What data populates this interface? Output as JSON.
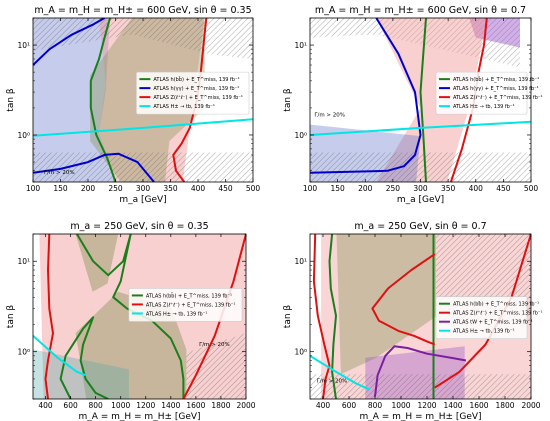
{
  "figure": {
    "panels": [
      {
        "title": "m_A = m_H = m_H± = 600 GeV, sin θ = 0.35",
        "xlabel": "m_a [GeV]",
        "ylabel": "tan β",
        "xticks": [
          "100",
          "150",
          "200",
          "250",
          "300",
          "350",
          "400",
          "450",
          "500"
        ],
        "yticks": [
          "10⁰",
          "10¹"
        ],
        "annotation": "Γ/m > 20%",
        "legend": [
          {
            "label": "ATLAS h(bb̄) + E_T^miss, 139 fb⁻¹",
            "color": "#1a7f1a"
          },
          {
            "label": "ATLAS h(γγ) + E_T^miss, 139 fb⁻¹",
            "color": "#0000cc"
          },
          {
            "label": "ATLAS Z(ℓ⁺ℓ⁻) + E_T^miss, 139 fb⁻¹",
            "color": "#e01010"
          },
          {
            "label": "ATLAS H± → tb, 139 fb⁻¹",
            "color": "#00e5e5"
          }
        ]
      },
      {
        "title": "m_A = m_H = m_H± = 600 GeV, sin θ = 0.7",
        "xlabel": "m_a [GeV]",
        "ylabel": "tan β",
        "xticks": [
          "100",
          "150",
          "200",
          "250",
          "300",
          "350",
          "400",
          "450",
          "500"
        ],
        "yticks": [
          "10⁰",
          "10¹"
        ],
        "annotation": "Γ/m > 20%",
        "legend": [
          {
            "label": "ATLAS h(bb̄) + E_T^miss, 139 fb⁻¹",
            "color": "#1a7f1a"
          },
          {
            "label": "ATLAS h(γγ) + E_T^miss, 139 fb⁻¹",
            "color": "#0000cc"
          },
          {
            "label": "ATLAS Z(ℓ⁺ℓ⁻) + E_T^miss, 139 fb⁻¹",
            "color": "#e01010"
          },
          {
            "label": "ATLAS H± → tb, 139 fb⁻¹",
            "color": "#00e5e5"
          }
        ]
      },
      {
        "title": "m_a = 250 GeV, sin θ = 0.35",
        "xlabel": "m_A = m_H = m_H± [GeV]",
        "ylabel": "tan β",
        "xticks": [
          "400",
          "600",
          "800",
          "1000",
          "1200",
          "1400",
          "1600",
          "1800",
          "2000"
        ],
        "yticks": [
          "10⁰",
          "10¹"
        ],
        "annotation": "Γ/m > 20%",
        "legend": [
          {
            "label": "ATLAS h(bb̄) + E_T^miss, 139 fb⁻¹",
            "color": "#1a7f1a"
          },
          {
            "label": "ATLAS Z(ℓ⁺ℓ⁻) + E_T^miss, 139 fb⁻¹",
            "color": "#e01010"
          },
          {
            "label": "ATLAS H± → tb, 139 fb⁻¹",
            "color": "#00e5e5"
          }
        ]
      },
      {
        "title": "m_a = 250 GeV, sin θ = 0.7",
        "xlabel": "m_A = m_H = m_H± [GeV]",
        "ylabel": "tan β",
        "xticks": [
          "400",
          "600",
          "800",
          "1000",
          "1200",
          "1400",
          "1600",
          "1800",
          "2000"
        ],
        "yticks": [
          "10⁰",
          "10¹"
        ],
        "annotation": "Γ/m > 20%",
        "legend": [
          {
            "label": "ATLAS h(bb̄) + E_T^miss, 139 fb⁻¹",
            "color": "#1a7f1a"
          },
          {
            "label": "ATLAS Z(ℓ⁺ℓ⁻) + E_T^miss, 139 fb⁻¹",
            "color": "#e01010"
          },
          {
            "label": "ATLAS tW + E_T^miss, 139 fb⁻¹",
            "color": "#7a1f9e"
          },
          {
            "label": "ATLAS H± → tb, 139 fb⁻¹",
            "color": "#00e5e5"
          }
        ]
      }
    ]
  },
  "chart_data": [
    {
      "type": "line",
      "title": "m_A = m_H = m_H± = 600 GeV, sin θ = 0.35",
      "xlabel": "m_a [GeV]",
      "ylabel": "tan β",
      "xlim": [
        100,
        500
      ],
      "ylim": [
        0.3,
        20
      ],
      "yscale": "log",
      "grid": false,
      "legend_position": "right",
      "series": [
        {
          "name": "ATLAS h(bb̄) + E_T^miss, 139 fb⁻¹",
          "color": "#1a7f1a",
          "points": [
            [
              240,
              20
            ],
            [
              230,
              12
            ],
            [
              220,
              7
            ],
            [
              205,
              4
            ],
            [
              205,
              2
            ],
            [
              215,
              1.0
            ],
            [
              235,
              0.55
            ],
            [
              250,
              0.3
            ]
          ]
        },
        {
          "name": "ATLAS h(γγ) + E_T^miss, 139 fb⁻¹",
          "color": "#0000cc",
          "points": [
            [
              100,
              6
            ],
            [
              130,
              9
            ],
            [
              170,
              13
            ],
            [
              210,
              17
            ],
            [
              230,
              20
            ]
          ]
        },
        {
          "name": "ATLAS h(γγ) + E_T^miss, 139 fb⁻¹ (lower)",
          "color": "#0000cc",
          "points": [
            [
              100,
              0.38
            ],
            [
              150,
              0.42
            ],
            [
              200,
              0.5
            ],
            [
              230,
              0.6
            ],
            [
              255,
              0.62
            ],
            [
              290,
              0.5
            ],
            [
              320,
              0.3
            ]
          ]
        },
        {
          "name": "ATLAS Z(ℓ⁺ℓ⁻) + E_T^miss, 139 fb⁻¹",
          "color": "#e01010",
          "points": [
            [
              415,
              20
            ],
            [
              410,
              10
            ],
            [
              405,
              5
            ],
            [
              398,
              2.5
            ],
            [
              385,
              1.2
            ],
            [
              370,
              0.8
            ],
            [
              355,
              0.6
            ],
            [
              360,
              0.4
            ],
            [
              375,
              0.3
            ]
          ]
        },
        {
          "name": "ATLAS H± → tb, 139 fb⁻¹",
          "color": "#00e5e5",
          "points": [
            [
              100,
              0.98
            ],
            [
              300,
              1.2
            ],
            [
              500,
              1.5
            ]
          ]
        }
      ]
    },
    {
      "type": "line",
      "title": "m_A = m_H = m_H± = 600 GeV, sin θ = 0.7",
      "xlabel": "m_a [GeV]",
      "ylabel": "tan β",
      "xlim": [
        100,
        500
      ],
      "ylim": [
        0.3,
        20
      ],
      "yscale": "log",
      "grid": false,
      "legend_position": "right",
      "series": [
        {
          "name": "ATLAS h(bb̄) + E_T^miss, 139 fb⁻¹",
          "color": "#1a7f1a",
          "points": [
            [
              310,
              20
            ],
            [
              305,
              8
            ],
            [
              300,
              3
            ],
            [
              305,
              1.0
            ],
            [
              310,
              0.3
            ]
          ]
        },
        {
          "name": "ATLAS h(γγ) + E_T^miss, 139 fb⁻¹",
          "color": "#0000cc",
          "points": [
            [
              220,
              20
            ],
            [
              260,
              8
            ],
            [
              290,
              3
            ],
            [
              300,
              1.0
            ],
            [
              290,
              0.6
            ],
            [
              270,
              0.45
            ],
            [
              240,
              0.4
            ],
            [
              100,
              0.38
            ]
          ]
        },
        {
          "name": "ATLAS Z(ℓ⁺ℓ⁻) + E_T^miss, 139 fb⁻¹",
          "color": "#e01010",
          "points": [
            [
              420,
              20
            ],
            [
              415,
              10
            ],
            [
              405,
              5
            ],
            [
              395,
              2
            ],
            [
              375,
              0.7
            ],
            [
              355,
              0.3
            ]
          ]
        },
        {
          "name": "ATLAS H± → tb, 139 fb⁻¹",
          "color": "#00e5e5",
          "points": [
            [
              100,
              1.0
            ],
            [
              300,
              1.2
            ],
            [
              500,
              1.4
            ]
          ]
        }
      ]
    },
    {
      "type": "line",
      "title": "m_a = 250 GeV, sin θ = 0.35",
      "xlabel": "m_A = m_H = m_H± [GeV]",
      "ylabel": "tan β",
      "xlim": [
        300,
        2000
      ],
      "ylim": [
        0.3,
        20
      ],
      "yscale": "log",
      "grid": false,
      "legend_position": "right",
      "series": [
        {
          "name": "ATLAS h(bb̄) + E_T^miss, 139 fb⁻¹",
          "color": "#1a7f1a",
          "points": [
            [
              650,
              20
            ],
            [
              780,
              10
            ],
            [
              900,
              7
            ],
            [
              1020,
              10
            ],
            [
              1080,
              20
            ],
            [
              1000,
              6
            ],
            [
              940,
              4
            ],
            [
              1050,
              3
            ],
            [
              1250,
              2.2
            ],
            [
              1400,
              1.4
            ],
            [
              1480,
              0.8
            ],
            [
              1500,
              0.5
            ],
            [
              1500,
              0.3
            ]
          ]
        },
        {
          "name": "ATLAS h(bb̄) + E_T^miss, 139 fb⁻¹ (inner)",
          "color": "#1a7f1a",
          "points": [
            [
              600,
              0.3
            ],
            [
              520,
              0.5
            ],
            [
              560,
              0.9
            ],
            [
              700,
              1.8
            ],
            [
              780,
              2.4
            ],
            [
              700,
              1.2
            ],
            [
              680,
              0.8
            ],
            [
              720,
              0.5
            ],
            [
              800,
              0.35
            ],
            [
              900,
              0.3
            ]
          ]
        },
        {
          "name": "ATLAS Z(ℓ⁺ℓ⁻) + E_T^miss, 139 fb⁻¹",
          "color": "#e01010",
          "points": [
            [
              430,
              20
            ],
            [
              420,
              8
            ],
            [
              430,
              3
            ],
            [
              460,
              1.6
            ],
            [
              420,
              0.8
            ],
            [
              400,
              0.5
            ],
            [
              420,
              0.3
            ]
          ]
        },
        {
          "name": "ATLAS Z(ℓ⁺ℓ⁻) + E_T^miss, 139 fb⁻¹ (high mass)",
          "color": "#e01010",
          "points": [
            [
              1500,
              0.3
            ],
            [
              1600,
              0.55
            ],
            [
              1750,
              1.5
            ],
            [
              1900,
              6
            ],
            [
              2000,
              20
            ]
          ]
        },
        {
          "name": "ATLAS H± → tb, 139 fb⁻¹",
          "color": "#00e5e5",
          "points": [
            [
              300,
              1.5
            ],
            [
              500,
              0.85
            ],
            [
              650,
              0.6
            ],
            [
              720,
              0.55
            ]
          ]
        }
      ]
    },
    {
      "type": "line",
      "title": "m_a = 250 GeV, sin θ = 0.7",
      "xlabel": "m_A = m_H = m_H± [GeV]",
      "ylabel": "tan β",
      "xlim": [
        300,
        2000
      ],
      "ylim": [
        0.3,
        20
      ],
      "yscale": "log",
      "grid": false,
      "legend_position": "right",
      "series": [
        {
          "name": "ATLAS h(bb̄) + E_T^miss, 139 fb⁻¹",
          "color": "#1a7f1a",
          "points": [
            [
              470,
              20
            ],
            [
              450,
              10
            ],
            [
              460,
              5
            ],
            [
              500,
              2.5
            ],
            [
              480,
              1.2
            ],
            [
              470,
              0.6
            ],
            [
              500,
              0.3
            ]
          ]
        },
        {
          "name": "ATLAS h(bb̄) + E_T^miss, 139 fb⁻¹ (vertical)",
          "color": "#1a7f1a",
          "points": [
            [
              1250,
              20
            ],
            [
              1250,
              0.3
            ]
          ]
        },
        {
          "name": "ATLAS Z(ℓ⁺ℓ⁻) + E_T^miss, 139 fb⁻¹",
          "color": "#e01010",
          "points": [
            [
              340,
              20
            ],
            [
              330,
              6
            ],
            [
              360,
              2.5
            ],
            [
              410,
              1.2
            ],
            [
              450,
              0.7
            ],
            [
              420,
              0.5
            ],
            [
              400,
              0.3
            ]
          ]
        },
        {
          "name": "ATLAS Z(ℓ⁺ℓ⁻) + E_T^miss, 139 fb⁻¹ (inner)",
          "color": "#e01010",
          "points": [
            [
              1260,
              12
            ],
            [
              1080,
              8
            ],
            [
              900,
              5
            ],
            [
              780,
              3
            ],
            [
              830,
              2.2
            ],
            [
              980,
              1.7
            ],
            [
              1100,
              1.5
            ],
            [
              1200,
              1.3
            ],
            [
              1260,
              1.2
            ]
          ]
        },
        {
          "name": "ATLAS Z(ℓ⁺ℓ⁻) + E_T^miss, 139 fb⁻¹ (high mass)",
          "color": "#e01010",
          "points": [
            [
              1260,
              0.4
            ],
            [
              1450,
              0.6
            ],
            [
              1650,
              1.2
            ],
            [
              1850,
              4
            ],
            [
              2000,
              20
            ]
          ]
        },
        {
          "name": "ATLAS tW + E_T^miss, 139 fb⁻¹",
          "color": "#7a1f9e",
          "points": [
            [
              800,
              0.32
            ],
            [
              820,
              0.55
            ],
            [
              880,
              0.9
            ],
            [
              950,
              1.15
            ],
            [
              1050,
              1.1
            ],
            [
              1200,
              0.95
            ],
            [
              1400,
              0.85
            ],
            [
              1500,
              0.8
            ]
          ]
        },
        {
          "name": "ATLAS H± → tb, 139 fb⁻¹",
          "color": "#00e5e5",
          "points": [
            [
              300,
              0.9
            ],
            [
              500,
              0.6
            ],
            [
              650,
              0.45
            ],
            [
              760,
              0.38
            ]
          ]
        }
      ]
    }
  ]
}
